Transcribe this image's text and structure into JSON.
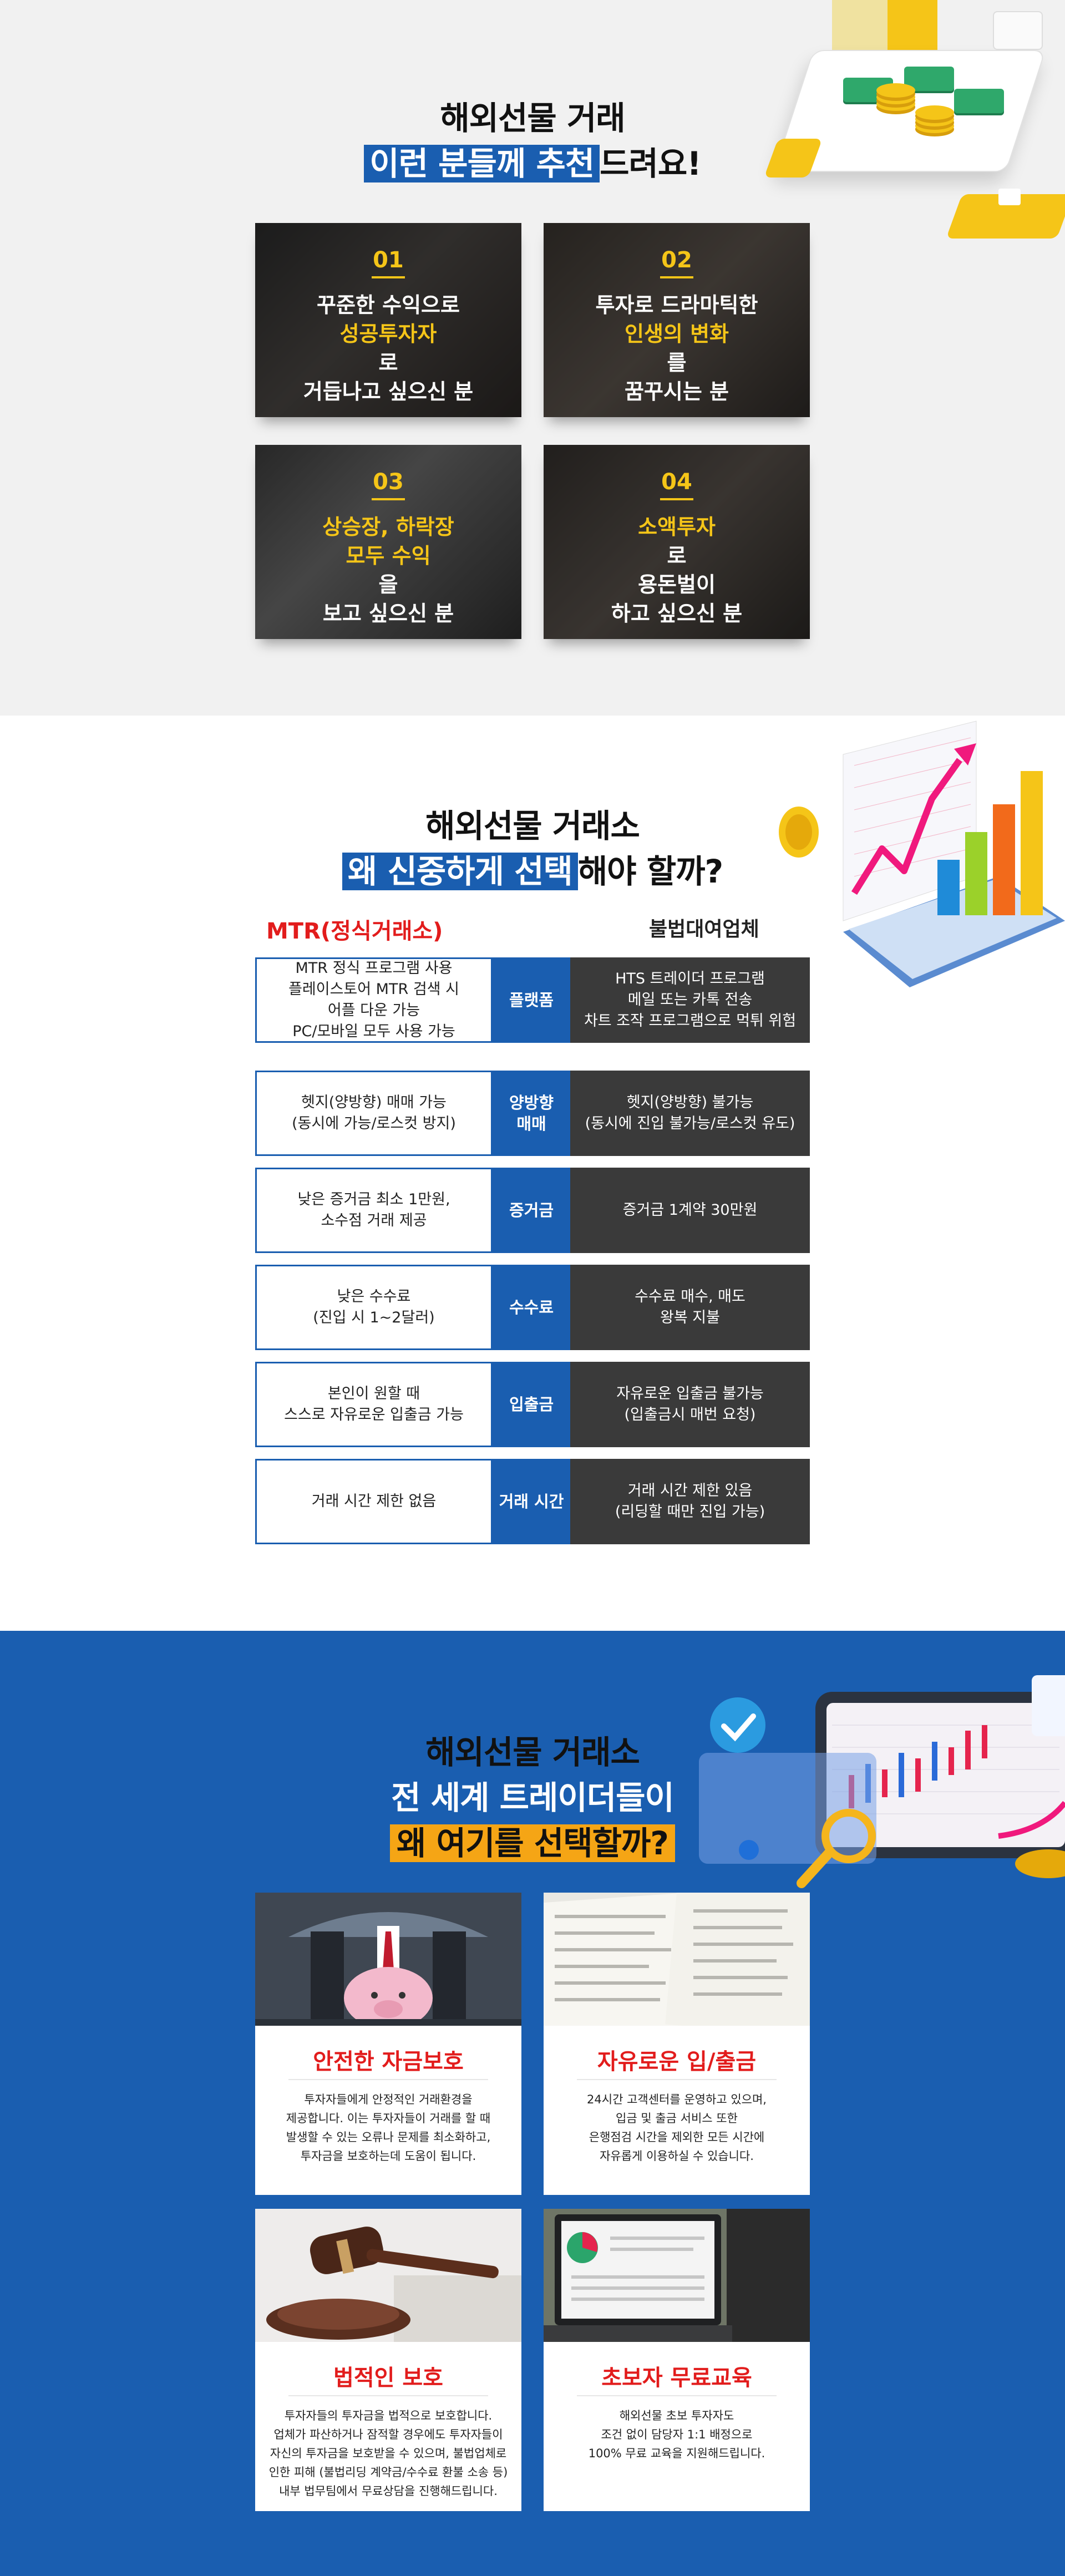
{
  "section1": {
    "title_line1": "해외선물 거래",
    "title_highlight": "이런 분들께 추천",
    "title_suffix": "드려요!",
    "cards": [
      {
        "num": "01",
        "lines": [
          {
            "text": "꾸준한 수익으로",
            "accent": false
          },
          {
            "text": "성공투자자",
            "accent": true,
            "tail": "로"
          },
          {
            "text": "거듭나고 싶으신 분",
            "accent": false
          }
        ]
      },
      {
        "num": "02",
        "lines": [
          {
            "text": "투자로 드라마틱한",
            "accent": false
          },
          {
            "text": "인생의 변화",
            "accent": true,
            "tail": "를"
          },
          {
            "text": "꿈꾸시는 분",
            "accent": false
          }
        ]
      },
      {
        "num": "03",
        "lines": [
          {
            "text": "상승장, 하락장",
            "accent": true,
            "tail": ""
          },
          {
            "text": "모두 수익",
            "accent": true,
            "tail": "을"
          },
          {
            "text": "보고 싶으신 분",
            "accent": false
          }
        ]
      },
      {
        "num": "04",
        "lines": [
          {
            "text": "소액투자",
            "accent": true,
            "tail": "로"
          },
          {
            "text": "용돈벌이",
            "accent": false
          },
          {
            "text": "하고 싶으신 분",
            "accent": false
          }
        ]
      }
    ]
  },
  "section2": {
    "title_line1": "해외선물 거래소",
    "title_highlight": "왜 신중하게 선택",
    "title_suffix": "해야 할까?",
    "left_header": "MTR(정식거래소)",
    "right_header": "불법대여업체",
    "colors": {
      "left_header": "#e21c1c",
      "right_header": "#111111",
      "mid": "#1a5eb0",
      "right_bg": "#3a3a3a"
    },
    "rows": [
      {
        "left": [
          "MTR 정식 프로그램 사용",
          "플레이스토어 MTR 검색 시",
          "어플 다운 가능",
          "PC/모바일 모두 사용 가능"
        ],
        "mid": [
          "플랫폼"
        ],
        "right": [
          "HTS 트레이더 프로그램",
          "메일 또는 카톡 전송",
          "차트 조작 프로그램으로 먹튀 위험"
        ]
      },
      {
        "left": [
          "헷지(양방향) 매매 가능",
          "(동시에 가능/로스컷 방지)"
        ],
        "mid": [
          "양방향",
          "매매"
        ],
        "right": [
          "헷지(양방향) 불가능",
          "(동시에 진입 불가능/로스컷 유도)"
        ]
      },
      {
        "left": [
          "낮은 증거금 최소 1만원,",
          "소수점 거래 제공"
        ],
        "mid": [
          "증거금"
        ],
        "right": [
          "증거금 1계약 30만원"
        ]
      },
      {
        "left": [
          "낮은 수수료",
          "(진입 시 1~2달러)"
        ],
        "mid": [
          "수수료"
        ],
        "right": [
          "수수료 매수, 매도",
          "왕복 지불"
        ]
      },
      {
        "left": [
          "본인이 원할 때",
          "스스로 자유로운 입출금 가능"
        ],
        "mid": [
          "입출금"
        ],
        "right": [
          "자유로운 입출금 불가능",
          "(입출금시 매번 요청)"
        ]
      },
      {
        "left": [
          "거래 시간 제한 없음"
        ],
        "mid": [
          "거래 시간"
        ],
        "right": [
          "거래 시간 제한 있음",
          "(리딩할 때만 진입 가능)"
        ]
      }
    ]
  },
  "section3": {
    "title_line1": "해외선물 거래소",
    "title_line2": "전 세계 트레이더들이",
    "title_highlight": "왜 여기를 선택할까?",
    "cards": [
      {
        "title": "안전한 자금보호",
        "image": "piggy-bank-umbrella",
        "desc": [
          "투자자들에게 안정적인 거래환경을",
          "제공합니다. 이는 투자자들이 거래를 할 때",
          "발생할 수 있는 오류나 문제를 최소화하고,",
          "투자금을 보호하는데 도움이 됩니다."
        ]
      },
      {
        "title": "자유로운 입/출금",
        "image": "bank-statement",
        "desc": [
          "24시간 고객센터를 운영하고 있으며,",
          "입금 및 출금 서비스 또한",
          "은행점검 시간을 제외한 모든 시간에",
          "자유롭게 이용하실 수 있습니다."
        ]
      },
      {
        "title": "법적인 보호",
        "image": "judge-gavel",
        "desc": [
          "투자자들의 투자금을 법적으로 보호합니다.",
          "업체가 파산하거나 잠적할 경우에도 투자자들이",
          "자신의 투자금을 보호받을 수 있으며, 불법업체로",
          "인한 피해 (불법리딩 계약금/수수료 환불 소송 등)",
          "내부 법무팀에서 무료상담을 진행해드립니다."
        ]
      },
      {
        "title": "초보자 무료교육",
        "image": "laptop-charts",
        "desc": [
          "해외선물 초보 투자자도",
          "조건 없이 담당자 1:1 배정으로",
          "100% 무료 교육을 지원해드립니다."
        ]
      }
    ]
  }
}
